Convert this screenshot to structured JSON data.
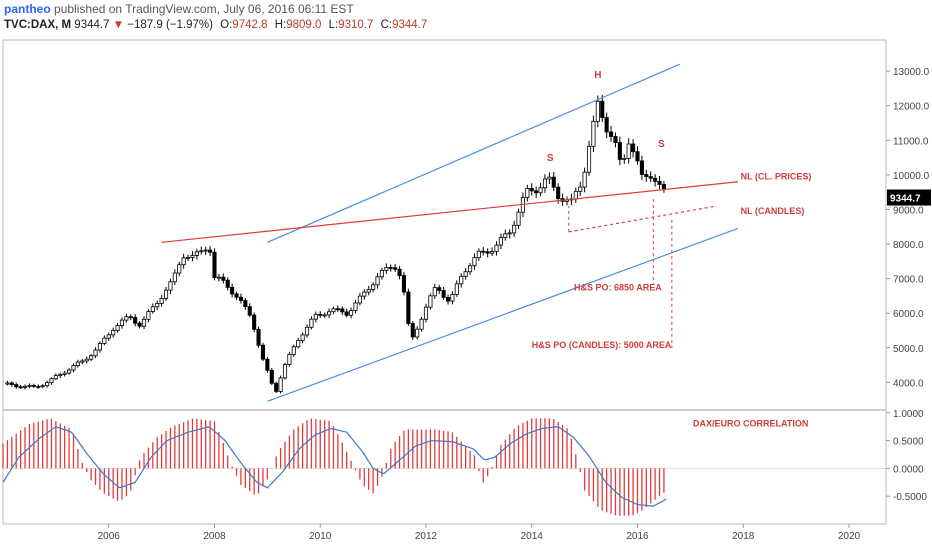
{
  "header": {
    "author": "pantheo",
    "published_text": "published on TradingView.com, July 06, 2016 06:11 EST",
    "symbol": "TVC:DAX, M",
    "last": "9344.7",
    "change_arrow": "▼",
    "change": "−187.9 (−1.97%)",
    "o_label": "O:",
    "o_value": "9742.8",
    "h_label": "H:",
    "h_value": "9809.0",
    "l_label": "L:",
    "l_value": "9310.7",
    "c_label": "C:",
    "c_value": "9344.7"
  },
  "colors": {
    "bull_body": "#ffffff",
    "bear_body": "#000000",
    "channel": "#4a90e2",
    "neckline": "#e03c3c",
    "annotation": "#d23c3c",
    "histogram": "#e03c3c",
    "corr_line": "#3a78c8",
    "price_tag_bg": "#000000"
  },
  "price_tag": "9344.7",
  "chart_data": [
    {
      "type": "candlestick",
      "name": "TVC:DAX, M",
      "x_range": [
        2004.0,
        2020.7
      ],
      "ylim": [
        3200,
        13900
      ],
      "y_ticks": [
        4000,
        5000,
        6000,
        7000,
        8000,
        9000,
        10000,
        11000,
        12000,
        13000
      ],
      "y_tick_labels": [
        "4000.0",
        "5000.0",
        "6000.0",
        "7000.0",
        "8000.0",
        "9000.0",
        "10000.0",
        "11000.0",
        "12000.0",
        "13000.0"
      ],
      "x_ticks": [
        2006,
        2008,
        2010,
        2012,
        2014,
        2016,
        2018,
        2020
      ],
      "x_tick_labels": [
        "2006",
        "2008",
        "2010",
        "2012",
        "2014",
        "2016",
        "2018",
        "2020"
      ],
      "close_path": [
        [
          2004.0,
          3950
        ],
        [
          2004.3,
          3900
        ],
        [
          2004.6,
          3850
        ],
        [
          2004.9,
          4050
        ],
        [
          2005.2,
          4350
        ],
        [
          2005.5,
          4600
        ],
        [
          2005.8,
          5000
        ],
        [
          2006.1,
          5600
        ],
        [
          2006.4,
          5900
        ],
        [
          2006.6,
          5650
        ],
        [
          2006.9,
          6300
        ],
        [
          2007.2,
          6900
        ],
        [
          2007.4,
          7700
        ],
        [
          2007.6,
          7600
        ],
        [
          2007.9,
          8000
        ],
        [
          2008.0,
          7000
        ],
        [
          2008.2,
          6900
        ],
        [
          2008.4,
          6500
        ],
        [
          2008.7,
          5900
        ],
        [
          2008.9,
          4700
        ],
        [
          2009.0,
          4300
        ],
        [
          2009.15,
          3700
        ],
        [
          2009.3,
          4400
        ],
        [
          2009.6,
          5300
        ],
        [
          2009.9,
          5900
        ],
        [
          2010.2,
          6100
        ],
        [
          2010.5,
          6000
        ],
        [
          2010.8,
          6500
        ],
        [
          2011.1,
          7100
        ],
        [
          2011.4,
          7400
        ],
        [
          2011.55,
          7000
        ],
        [
          2011.65,
          5700
        ],
        [
          2011.75,
          5300
        ],
        [
          2011.95,
          6000
        ],
        [
          2012.2,
          6800
        ],
        [
          2012.45,
          6300
        ],
        [
          2012.7,
          7200
        ],
        [
          2013.0,
          7700
        ],
        [
          2013.3,
          7900
        ],
        [
          2013.6,
          8400
        ],
        [
          2013.9,
          9500
        ],
        [
          2014.1,
          9600
        ],
        [
          2014.3,
          9900
        ],
        [
          2014.5,
          9400
        ],
        [
          2014.75,
          9200
        ],
        [
          2014.95,
          9800
        ],
        [
          2015.1,
          11000
        ],
        [
          2015.25,
          12000
        ],
        [
          2015.4,
          11400
        ],
        [
          2015.55,
          11100
        ],
        [
          2015.7,
          10100
        ],
        [
          2015.85,
          11100
        ],
        [
          2016.0,
          10400
        ],
        [
          2016.1,
          9800
        ],
        [
          2016.3,
          10000
        ],
        [
          2016.45,
          9700
        ],
        [
          2016.55,
          9344.7
        ]
      ],
      "channel_upper": [
        [
          2009.0,
          8050
        ],
        [
          2016.8,
          13200
        ]
      ],
      "channel_lower": [
        [
          2009.0,
          3450
        ],
        [
          2017.9,
          8450
        ]
      ],
      "neckline_cl_prices": [
        [
          2007.0,
          8050
        ],
        [
          2017.9,
          9800
        ]
      ],
      "neckline_candles": [
        [
          2014.7,
          8350
        ],
        [
          2017.5,
          9100
        ]
      ],
      "target_lines": [
        {
          "x": 2016.3,
          "from": 9300,
          "to": 6850
        },
        {
          "x": 2016.65,
          "from": 8700,
          "to": 5000
        }
      ],
      "annotations": [
        {
          "text": "S",
          "x": 2014.35,
          "y": 10400
        },
        {
          "text": "H",
          "x": 2015.25,
          "y": 12800
        },
        {
          "text": "S",
          "x": 2016.45,
          "y": 10800
        },
        {
          "text": "NL (CL. PRICES)",
          "x": 2017.95,
          "y": 9870
        },
        {
          "text": "NL (CANDLES)",
          "x": 2017.95,
          "y": 8870
        },
        {
          "text": "H&S PO: 6850 AREA",
          "x": 2014.8,
          "y": 6660
        },
        {
          "text": "H&S PO (CANDLES): 5000 AREA",
          "x": 2014.0,
          "y": 4990
        }
      ]
    },
    {
      "type": "bar+line",
      "name": "DAX/EURO CORRELATION",
      "ylim": [
        -1.0,
        1.05
      ],
      "y_ticks": [
        1.0,
        0.5,
        0.0,
        -0.5
      ],
      "y_tick_labels": [
        "1.0000",
        "0.5000",
        "0.0000",
        "-0.5000"
      ],
      "label": "DAX/EURO CORRELATION",
      "histogram_path": [
        [
          2004.0,
          0.45
        ],
        [
          2004.5,
          0.8
        ],
        [
          2004.9,
          0.9
        ],
        [
          2005.3,
          0.7
        ],
        [
          2005.5,
          0.1
        ],
        [
          2005.65,
          -0.2
        ],
        [
          2005.9,
          -0.45
        ],
        [
          2006.2,
          -0.6
        ],
        [
          2006.4,
          -0.45
        ],
        [
          2006.6,
          0.2
        ],
        [
          2006.9,
          0.55
        ],
        [
          2007.2,
          0.75
        ],
        [
          2007.6,
          0.9
        ],
        [
          2008.0,
          0.85
        ],
        [
          2008.15,
          0.5
        ],
        [
          2008.3,
          0.1
        ],
        [
          2008.5,
          -0.3
        ],
        [
          2008.8,
          -0.5
        ],
        [
          2009.0,
          -0.2
        ],
        [
          2009.2,
          0.3
        ],
        [
          2009.5,
          0.7
        ],
        [
          2009.8,
          0.9
        ],
        [
          2010.2,
          0.85
        ],
        [
          2010.4,
          0.5
        ],
        [
          2010.6,
          0.1
        ],
        [
          2010.8,
          -0.3
        ],
        [
          2011.0,
          -0.45
        ],
        [
          2011.15,
          -0.2
        ],
        [
          2011.35,
          0.4
        ],
        [
          2011.6,
          0.7
        ],
        [
          2011.9,
          0.7
        ],
        [
          2012.2,
          0.7
        ],
        [
          2012.5,
          0.65
        ],
        [
          2012.75,
          0.4
        ],
        [
          2012.95,
          0.2
        ],
        [
          2013.05,
          -0.3
        ],
        [
          2013.2,
          -0.1
        ],
        [
          2013.4,
          0.4
        ],
        [
          2013.7,
          0.75
        ],
        [
          2014.0,
          0.9
        ],
        [
          2014.4,
          0.9
        ],
        [
          2014.7,
          0.7
        ],
        [
          2014.85,
          0.2
        ],
        [
          2015.0,
          -0.4
        ],
        [
          2015.3,
          -0.75
        ],
        [
          2015.6,
          -0.85
        ],
        [
          2015.9,
          -0.85
        ],
        [
          2016.1,
          -0.75
        ],
        [
          2016.35,
          -0.55
        ],
        [
          2016.55,
          -0.4
        ]
      ],
      "line_path": [
        [
          2004.0,
          -0.25
        ],
        [
          2004.3,
          0.2
        ],
        [
          2004.7,
          0.55
        ],
        [
          2005.0,
          0.75
        ],
        [
          2005.3,
          0.65
        ],
        [
          2005.6,
          0.25
        ],
        [
          2005.9,
          -0.1
        ],
        [
          2006.2,
          -0.35
        ],
        [
          2006.5,
          -0.25
        ],
        [
          2006.8,
          0.2
        ],
        [
          2007.1,
          0.5
        ],
        [
          2007.5,
          0.65
        ],
        [
          2007.9,
          0.75
        ],
        [
          2008.2,
          0.5
        ],
        [
          2008.5,
          0.1
        ],
        [
          2008.8,
          -0.25
        ],
        [
          2009.0,
          -0.35
        ],
        [
          2009.3,
          -0.05
        ],
        [
          2009.6,
          0.35
        ],
        [
          2009.9,
          0.6
        ],
        [
          2010.2,
          0.72
        ],
        [
          2010.5,
          0.65
        ],
        [
          2010.8,
          0.3
        ],
        [
          2011.0,
          0.0
        ],
        [
          2011.2,
          -0.1
        ],
        [
          2011.5,
          0.15
        ],
        [
          2011.8,
          0.4
        ],
        [
          2012.1,
          0.5
        ],
        [
          2012.5,
          0.48
        ],
        [
          2012.9,
          0.35
        ],
        [
          2013.1,
          0.15
        ],
        [
          2013.3,
          0.2
        ],
        [
          2013.6,
          0.45
        ],
        [
          2013.9,
          0.62
        ],
        [
          2014.2,
          0.72
        ],
        [
          2014.5,
          0.75
        ],
        [
          2014.8,
          0.55
        ],
        [
          2015.1,
          0.2
        ],
        [
          2015.4,
          -0.25
        ],
        [
          2015.7,
          -0.52
        ],
        [
          2016.0,
          -0.65
        ],
        [
          2016.3,
          -0.68
        ],
        [
          2016.55,
          -0.55
        ]
      ]
    }
  ]
}
